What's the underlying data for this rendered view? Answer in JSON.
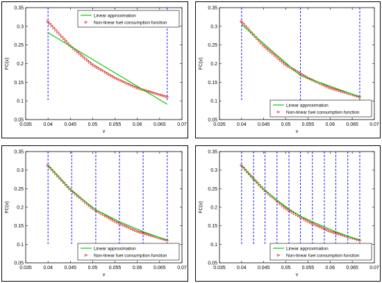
{
  "chart_data": [
    {
      "type": "line",
      "xlabel": "v",
      "ylabel": "FC(v)",
      "xlim": [
        0.035,
        0.07
      ],
      "ylim": [
        0.05,
        0.35
      ],
      "xticks": [
        "0.035",
        "0.04",
        "0.045",
        "0.05",
        "0.055",
        "0.06",
        "0.065",
        "0.07"
      ],
      "yticks": [
        "0.05",
        "0.1",
        "0.15",
        "0.2",
        "0.25",
        "0.3",
        "0.35"
      ],
      "legend_position": "top-right",
      "series": [
        {
          "name": "Linear approximation",
          "color": "#00cc00",
          "style": "solid",
          "x": [
            0.04,
            0.0667
          ],
          "y": [
            0.283,
            0.091
          ]
        },
        {
          "name": "Non-linear fuel consumption function",
          "color": "#dd0000",
          "style": "markers",
          "x": [
            0.04,
            0.045,
            0.05,
            0.055,
            0.06,
            0.0667
          ],
          "y": [
            0.313,
            0.248,
            0.197,
            0.162,
            0.135,
            0.111
          ]
        }
      ],
      "breakpoints": [
        0.04,
        0.0667
      ],
      "breakpoint_color": "#0000ff",
      "breakpoint_yrange": [
        0.1,
        0.35
      ]
    },
    {
      "type": "line",
      "xlabel": "v",
      "ylabel": "FC(v)",
      "xlim": [
        0.035,
        0.07
      ],
      "ylim": [
        0.05,
        0.35
      ],
      "xticks": [
        "0.035",
        "0.04",
        "0.045",
        "0.05",
        "0.055",
        "0.06",
        "0.065",
        "0.07"
      ],
      "yticks": [
        "0.05",
        "0.1",
        "0.15",
        "0.2",
        "0.25",
        "0.3",
        "0.35"
      ],
      "legend_position": "bottom-right",
      "series": [
        {
          "name": "Linear approximation",
          "color": "#00cc00",
          "style": "solid",
          "x": [
            0.04,
            0.0533,
            0.0667
          ],
          "y": [
            0.305,
            0.168,
            0.111
          ]
        },
        {
          "name": "Non-linear fuel consumption function",
          "color": "#dd0000",
          "style": "markers",
          "x": [
            0.04,
            0.045,
            0.05,
            0.055,
            0.06,
            0.0667
          ],
          "y": [
            0.313,
            0.248,
            0.197,
            0.162,
            0.135,
            0.111
          ]
        }
      ],
      "breakpoints": [
        0.04,
        0.0533,
        0.0667
      ],
      "breakpoint_color": "#0000ff",
      "breakpoint_yrange": [
        0.1,
        0.35
      ]
    },
    {
      "type": "line",
      "xlabel": "v",
      "ylabel": "FC(v)",
      "xlim": [
        0.035,
        0.07
      ],
      "ylim": [
        0.05,
        0.35
      ],
      "xticks": [
        "0.035",
        "0.04",
        "0.045",
        "0.05",
        "0.055",
        "0.06",
        "0.065",
        "0.07"
      ],
      "yticks": [
        "0.05",
        "0.1",
        "0.15",
        "0.2",
        "0.25",
        "0.3",
        "0.35"
      ],
      "legend_position": "bottom-right",
      "series": [
        {
          "name": "Linear approximation",
          "color": "#00cc00",
          "style": "solid",
          "x": [
            0.04,
            0.0453,
            0.0507,
            0.056,
            0.0613,
            0.0667
          ],
          "y": [
            0.313,
            0.244,
            0.193,
            0.161,
            0.134,
            0.111
          ]
        },
        {
          "name": "Non-linear fuel consumption function",
          "color": "#dd0000",
          "style": "markers",
          "x": [
            0.04,
            0.045,
            0.05,
            0.055,
            0.06,
            0.0667
          ],
          "y": [
            0.313,
            0.248,
            0.197,
            0.162,
            0.135,
            0.111
          ]
        }
      ],
      "breakpoints": [
        0.04,
        0.0453,
        0.0507,
        0.056,
        0.0613,
        0.0667
      ],
      "breakpoint_color": "#0000ff",
      "breakpoint_yrange": [
        0.1,
        0.35
      ]
    },
    {
      "type": "line",
      "xlabel": "v",
      "ylabel": "FC(v)",
      "xlim": [
        0.035,
        0.07
      ],
      "ylim": [
        0.05,
        0.35
      ],
      "xticks": [
        "0.035",
        "0.04",
        "0.045",
        "0.05",
        "0.055",
        "0.06",
        "0.065",
        "0.07"
      ],
      "yticks": [
        "0.05",
        "0.1",
        "0.15",
        "0.2",
        "0.25",
        "0.3",
        "0.35"
      ],
      "legend_position": "bottom-right",
      "series": [
        {
          "name": "Linear approximation",
          "color": "#00cc00",
          "style": "solid",
          "x": [
            0.04,
            0.0427,
            0.0453,
            0.048,
            0.0507,
            0.0533,
            0.056,
            0.0587,
            0.0613,
            0.064,
            0.0667
          ],
          "y": [
            0.313,
            0.275,
            0.246,
            0.219,
            0.195,
            0.176,
            0.161,
            0.147,
            0.134,
            0.122,
            0.111
          ]
        },
        {
          "name": "Non-linear fuel consumption function",
          "color": "#dd0000",
          "style": "markers",
          "x": [
            0.04,
            0.045,
            0.05,
            0.055,
            0.06,
            0.0667
          ],
          "y": [
            0.313,
            0.248,
            0.197,
            0.162,
            0.135,
            0.111
          ]
        }
      ],
      "breakpoints": [
        0.04,
        0.0427,
        0.0453,
        0.048,
        0.0507,
        0.0533,
        0.056,
        0.0587,
        0.0613,
        0.064,
        0.0667
      ],
      "breakpoint_color": "#0000ff",
      "breakpoint_yrange": [
        0.1,
        0.35
      ]
    }
  ]
}
